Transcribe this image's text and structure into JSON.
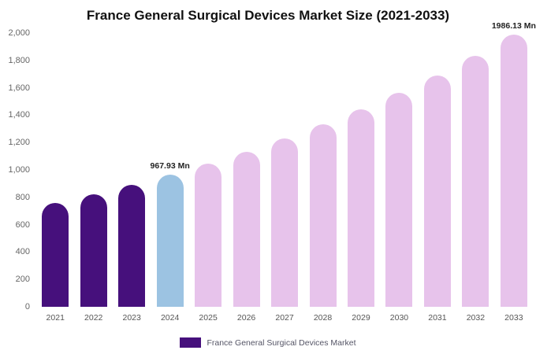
{
  "chart_data": {
    "type": "bar",
    "title": "France General Surgical Devices Market Size (2021-2033)",
    "categories": [
      "2021",
      "2022",
      "2023",
      "2024",
      "2025",
      "2026",
      "2027",
      "2028",
      "2029",
      "2030",
      "2031",
      "2032",
      "2033"
    ],
    "values": [
      760,
      823,
      890,
      967.93,
      1048,
      1135,
      1229,
      1331,
      1442,
      1561,
      1691,
      1832,
      1986.13
    ],
    "bar_colors": [
      "#46107c",
      "#46107c",
      "#46107c",
      "#9cc3e2",
      "#e7c3eb",
      "#e7c3eb",
      "#e7c3eb",
      "#e7c3eb",
      "#e7c3eb",
      "#e7c3eb",
      "#e7c3eb",
      "#e7c3eb",
      "#e7c3eb"
    ],
    "annotations": [
      {
        "index": 3,
        "text": "967.93 Mn"
      },
      {
        "index": 12,
        "text": "1986.13 Mn"
      }
    ],
    "xlabel": "",
    "ylabel": "",
    "ylim": [
      0,
      2000
    ],
    "y_ticks": [
      "0",
      "200",
      "400",
      "600",
      "800",
      "1,000",
      "1,200",
      "1,400",
      "1,600",
      "1,800",
      "2,000"
    ],
    "grid": false,
    "legend_position": "bottom",
    "legend": "France General Surgical Devices Market",
    "colors": {
      "historical": "#46107c",
      "current_year_highlight": "#9cc3e2",
      "forecast": "#e7c3eb",
      "title_text": "#111111",
      "axis_text": "#666666"
    }
  }
}
